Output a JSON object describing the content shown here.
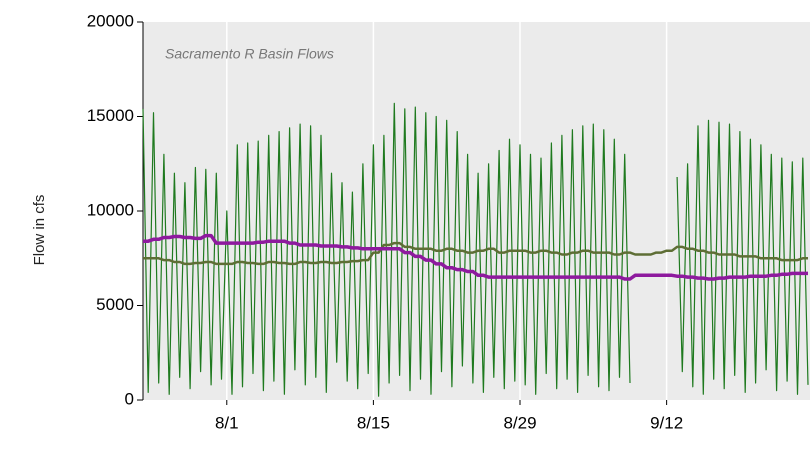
{
  "chart_data": {
    "type": "line",
    "title": "Sacramento R Basin Flows",
    "y_label": "Flow in cfs",
    "categories": [
      null,
      null,
      null,
      null,
      null,
      null,
      null,
      null,
      null,
      null,
      null,
      null,
      null,
      null,
      null,
      null,
      "8/1",
      null,
      null,
      null,
      null,
      null,
      null,
      null,
      null,
      null,
      null,
      null,
      null,
      null,
      null,
      null,
      null,
      null,
      null,
      null,
      null,
      null,
      null,
      null,
      null,
      null,
      null,
      null,
      "8/15",
      null,
      null,
      null,
      null,
      null,
      null,
      null,
      null,
      null,
      null,
      null,
      null,
      null,
      null,
      null,
      null,
      null,
      null,
      null,
      null,
      null,
      null,
      null,
      null,
      null,
      null,
      null,
      "8/29",
      null,
      null,
      null,
      null,
      null,
      null,
      null,
      null,
      null,
      null,
      null,
      null,
      null,
      null,
      null,
      null,
      null,
      null,
      null,
      null,
      null,
      null,
      null,
      null,
      null,
      null,
      null,
      "9/12",
      null,
      null,
      null,
      null,
      null,
      null,
      null,
      null,
      null,
      null,
      null,
      null,
      null,
      null,
      null,
      null,
      null,
      null,
      null,
      null,
      null,
      null,
      null,
      null,
      null,
      null,
      null
    ],
    "series": [
      {
        "color": "#1f7a1f",
        "width": 1.2,
        "values": [
          15400,
          400,
          15200,
          900,
          13000,
          300,
          12000,
          1200,
          11500,
          600,
          12300,
          1500,
          12200,
          800,
          12000,
          1100,
          10000,
          300,
          13500,
          700,
          13600,
          1400,
          13700,
          500,
          14000,
          1000,
          14200,
          300,
          14400,
          1600,
          14600,
          800,
          14500,
          1200,
          14000,
          400,
          12000,
          2000,
          11500,
          1000,
          11000,
          600,
          12500,
          1400,
          13500,
          200,
          14000,
          900,
          15700,
          1300,
          15400,
          500,
          15500,
          1100,
          15200,
          300,
          15000,
          1500,
          14800,
          700,
          14200,
          1800,
          13000,
          900,
          12000,
          400,
          12500,
          1200,
          13200,
          600,
          13800,
          1000,
          13500,
          800,
          13000,
          300,
          12800,
          1400,
          13600,
          600,
          14000,
          1100,
          14300,
          400,
          14500,
          1300,
          14600,
          700,
          14300,
          500,
          13800,
          1200,
          13000,
          900,
          null,
          null,
          null,
          null,
          null,
          null,
          null,
          null,
          11800,
          1500,
          12500,
          700,
          14500,
          300,
          14800,
          1100,
          14700,
          600,
          14600,
          1300,
          14200,
          400,
          13800,
          900,
          13500,
          1600,
          13000,
          500,
          12800,
          1000,
          12600,
          300,
          12800,
          800
        ]
      },
      {
        "color": "#5e6e35",
        "width": 2.5,
        "values": [
          7500,
          7500,
          7500,
          7500,
          7400,
          7400,
          7300,
          7300,
          7200,
          7200,
          7250,
          7250,
          7300,
          7300,
          7200,
          7200,
          7200,
          7200,
          7300,
          7300,
          7250,
          7250,
          7200,
          7200,
          7300,
          7300,
          7250,
          7250,
          7200,
          7200,
          7300,
          7300,
          7250,
          7250,
          7300,
          7300,
          7250,
          7250,
          7300,
          7300,
          7350,
          7350,
          7400,
          7400,
          7800,
          7800,
          8200,
          8200,
          8300,
          8300,
          8100,
          8100,
          8000,
          8000,
          8000,
          8000,
          7900,
          7900,
          8000,
          8000,
          7900,
          7900,
          7800,
          7800,
          7900,
          7900,
          8000,
          8000,
          7800,
          7800,
          7900,
          7900,
          7900,
          7900,
          7800,
          7800,
          7900,
          7900,
          7800,
          7800,
          7700,
          7700,
          7800,
          7800,
          7900,
          7900,
          7800,
          7800,
          7800,
          7800,
          7700,
          7700,
          7800,
          7800,
          7700,
          7700,
          7700,
          7700,
          7800,
          7800,
          7900,
          7900,
          8100,
          8100,
          8000,
          8000,
          7900,
          7900,
          7800,
          7800,
          7700,
          7700,
          7700,
          7700,
          7600,
          7600,
          7600,
          7600,
          7500,
          7500,
          7500,
          7500,
          7400,
          7400,
          7400,
          7400,
          7500,
          7500
        ]
      },
      {
        "color": "#8e1a9e",
        "width": 3.5,
        "values": [
          8400,
          8400,
          8500,
          8500,
          8600,
          8600,
          8650,
          8650,
          8600,
          8600,
          8550,
          8550,
          8700,
          8700,
          8300,
          8300,
          8300,
          8300,
          8300,
          8300,
          8300,
          8300,
          8350,
          8350,
          8400,
          8400,
          8400,
          8400,
          8300,
          8300,
          8200,
          8200,
          8200,
          8200,
          8150,
          8150,
          8150,
          8150,
          8100,
          8100,
          8050,
          8050,
          8000,
          8000,
          8000,
          8000,
          8000,
          8000,
          8000,
          8000,
          7800,
          7800,
          7600,
          7600,
          7400,
          7400,
          7200,
          7200,
          7000,
          7000,
          6900,
          6900,
          6800,
          6800,
          6600,
          6600,
          6500,
          6500,
          6500,
          6500,
          6500,
          6500,
          6500,
          6500,
          6500,
          6500,
          6500,
          6500,
          6500,
          6500,
          6500,
          6500,
          6500,
          6500,
          6500,
          6500,
          6500,
          6500,
          6500,
          6500,
          6500,
          6500,
          6400,
          6400,
          6600,
          6600,
          6600,
          6600,
          6600,
          6600,
          6600,
          6600,
          6550,
          6550,
          6500,
          6500,
          6450,
          6450,
          6400,
          6400,
          6450,
          6450,
          6500,
          6500,
          6500,
          6500,
          6550,
          6550,
          6550,
          6550,
          6600,
          6600,
          6650,
          6650,
          6700,
          6700,
          6700,
          6700
        ]
      }
    ],
    "ylim": [
      0,
      20000
    ],
    "yticks": [
      0,
      5000,
      10000,
      15000,
      20000
    ],
    "grid": true
  }
}
